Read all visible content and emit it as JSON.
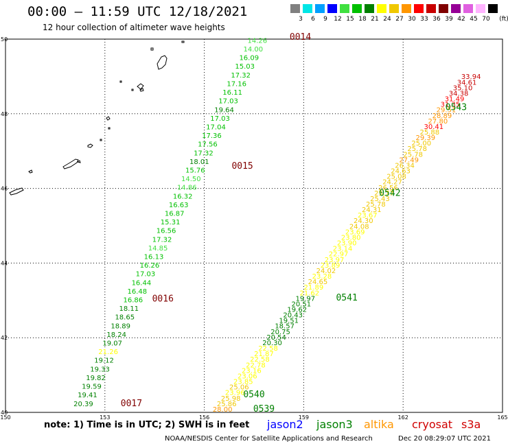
{
  "header": {
    "title": "00:00 – 11:59 UTC 12/18/2021",
    "subtitle": "12 hour collection of altimeter wave heights"
  },
  "legend": {
    "unit": "(ft)",
    "bins": [
      {
        "label": "3",
        "color": "#808080"
      },
      {
        "label": "6",
        "color": "#00e6e6"
      },
      {
        "label": "9",
        "color": "#00a0ff"
      },
      {
        "label": "12",
        "color": "#0000ff"
      },
      {
        "label": "15",
        "color": "#40e040"
      },
      {
        "label": "18",
        "color": "#00c000"
      },
      {
        "label": "21",
        "color": "#008000"
      },
      {
        "label": "24",
        "color": "#ffff00"
      },
      {
        "label": "27",
        "color": "#f0c800"
      },
      {
        "label": "30",
        "color": "#ff9600"
      },
      {
        "label": "33",
        "color": "#ff0000"
      },
      {
        "label": "36",
        "color": "#c80000"
      },
      {
        "label": "39",
        "color": "#800000"
      },
      {
        "label": "42",
        "color": "#960096"
      },
      {
        "label": "45",
        "color": "#e060e0"
      },
      {
        "label": "70",
        "color": "#ffb4ff"
      },
      {
        "label": "",
        "color": "#000000"
      }
    ]
  },
  "map": {
    "lon_range": [
      150,
      165
    ],
    "lat_range": [
      40,
      50
    ],
    "lon_ticks": [
      "150",
      "153",
      "156",
      "159",
      "162",
      "165"
    ],
    "lat_ticks": [
      "50",
      "48",
      "46",
      "44",
      "42",
      "40"
    ]
  },
  "passes": [
    {
      "time": "0014",
      "color": "#800000",
      "lon": 158.9,
      "lat": 49.98
    },
    {
      "time": "0015",
      "color": "#800000",
      "lon": 157.15,
      "lat": 46.53
    },
    {
      "time": "0016",
      "color": "#800000",
      "lon": 154.75,
      "lat": 42.97
    },
    {
      "time": "0017",
      "color": "#800000",
      "lon": 153.8,
      "lat": 40.17
    },
    {
      "time": "0539",
      "color": "#008000",
      "lon": 157.8,
      "lat": 40.02
    },
    {
      "time": "0540",
      "color": "#008000",
      "lon": 157.5,
      "lat": 40.4
    },
    {
      "time": "0541",
      "color": "#008000",
      "lon": 160.3,
      "lat": 43.0
    },
    {
      "time": "0542",
      "color": "#008000",
      "lon": 161.6,
      "lat": 45.8
    },
    {
      "time": "0543",
      "color": "#008000",
      "lon": 163.6,
      "lat": 48.1
    }
  ],
  "tracks": [
    {
      "name": "track-0014-0017",
      "lon_start": 157.6,
      "lon_end": 152.35,
      "lat_start": 49.9,
      "lat_end": 40.17,
      "values": [
        "14.26",
        "14.00",
        "16.09",
        "15.03",
        "17.32",
        "17.16",
        "16.11",
        "17.03",
        "19.64",
        "17.03",
        "17.04",
        "17.36",
        "17.56",
        "17.32",
        "18.01",
        "15.76",
        "14.50",
        "14.86",
        "16.32",
        "16.63",
        "16.87",
        "15.31",
        "16.56",
        "17.32",
        "14.85",
        "16.13",
        "16.26",
        "17.03",
        "16.44",
        "16.48",
        "16.86",
        "18.11",
        "18.65",
        "18.89",
        "18.24",
        "19.07",
        "21.26",
        "19.12",
        "19.33",
        "19.82",
        "19.59",
        "19.41",
        "20.39"
      ]
    },
    {
      "name": "track-0539-0543",
      "lon_start": 156.55,
      "lon_end": 164.05,
      "lat_start": 40.02,
      "lat_end": 48.93,
      "values": [
        "28.00",
        "25.86",
        "25.98",
        "23.96",
        "25.06",
        "23.85",
        "23.06",
        "23.16",
        "22.78",
        "22.58",
        "21.87",
        "22.58",
        "20.30",
        "20.54",
        "20.75",
        "18.57",
        "19.51",
        "20.43",
        "19.62",
        "20.51",
        "19.97",
        "21.62",
        "21.89",
        "24.65",
        "23.28",
        "24.02",
        "23.89",
        "23.97",
        "22.97",
        "23.14",
        "23.90",
        "23.80",
        "23.69",
        "24.08",
        "24.30",
        "23.67",
        "24.31",
        "25.78",
        "25.43",
        "25.77",
        "26.56",
        "24.27",
        "25.08",
        "24.63",
        "26.34",
        "27.49",
        "25.78",
        "25.78",
        "25.00",
        "29.39",
        "25.88",
        "30.41",
        "27.80",
        "28.89",
        "29.51",
        "31.35",
        "31.49",
        "34.38",
        "35.10",
        "34.61",
        "33.94"
      ]
    }
  ],
  "footer": {
    "note": "note: 1) Time is in UTC; 2) SWH is in feet",
    "satellites": [
      {
        "name": "jason2",
        "color": "#0000ff"
      },
      {
        "name": "jason3",
        "color": "#008000"
      },
      {
        "name": "altika",
        "color": "#ff9600"
      },
      {
        "name": "cryosat",
        "color": "#d00000"
      },
      {
        "name": "s3a",
        "color": "#d00000"
      }
    ],
    "credit": "NOAA/NESDIS Center for Satellite Applications and Research",
    "timestamp": "Dec 20 08:29:07 UTC 2021"
  }
}
